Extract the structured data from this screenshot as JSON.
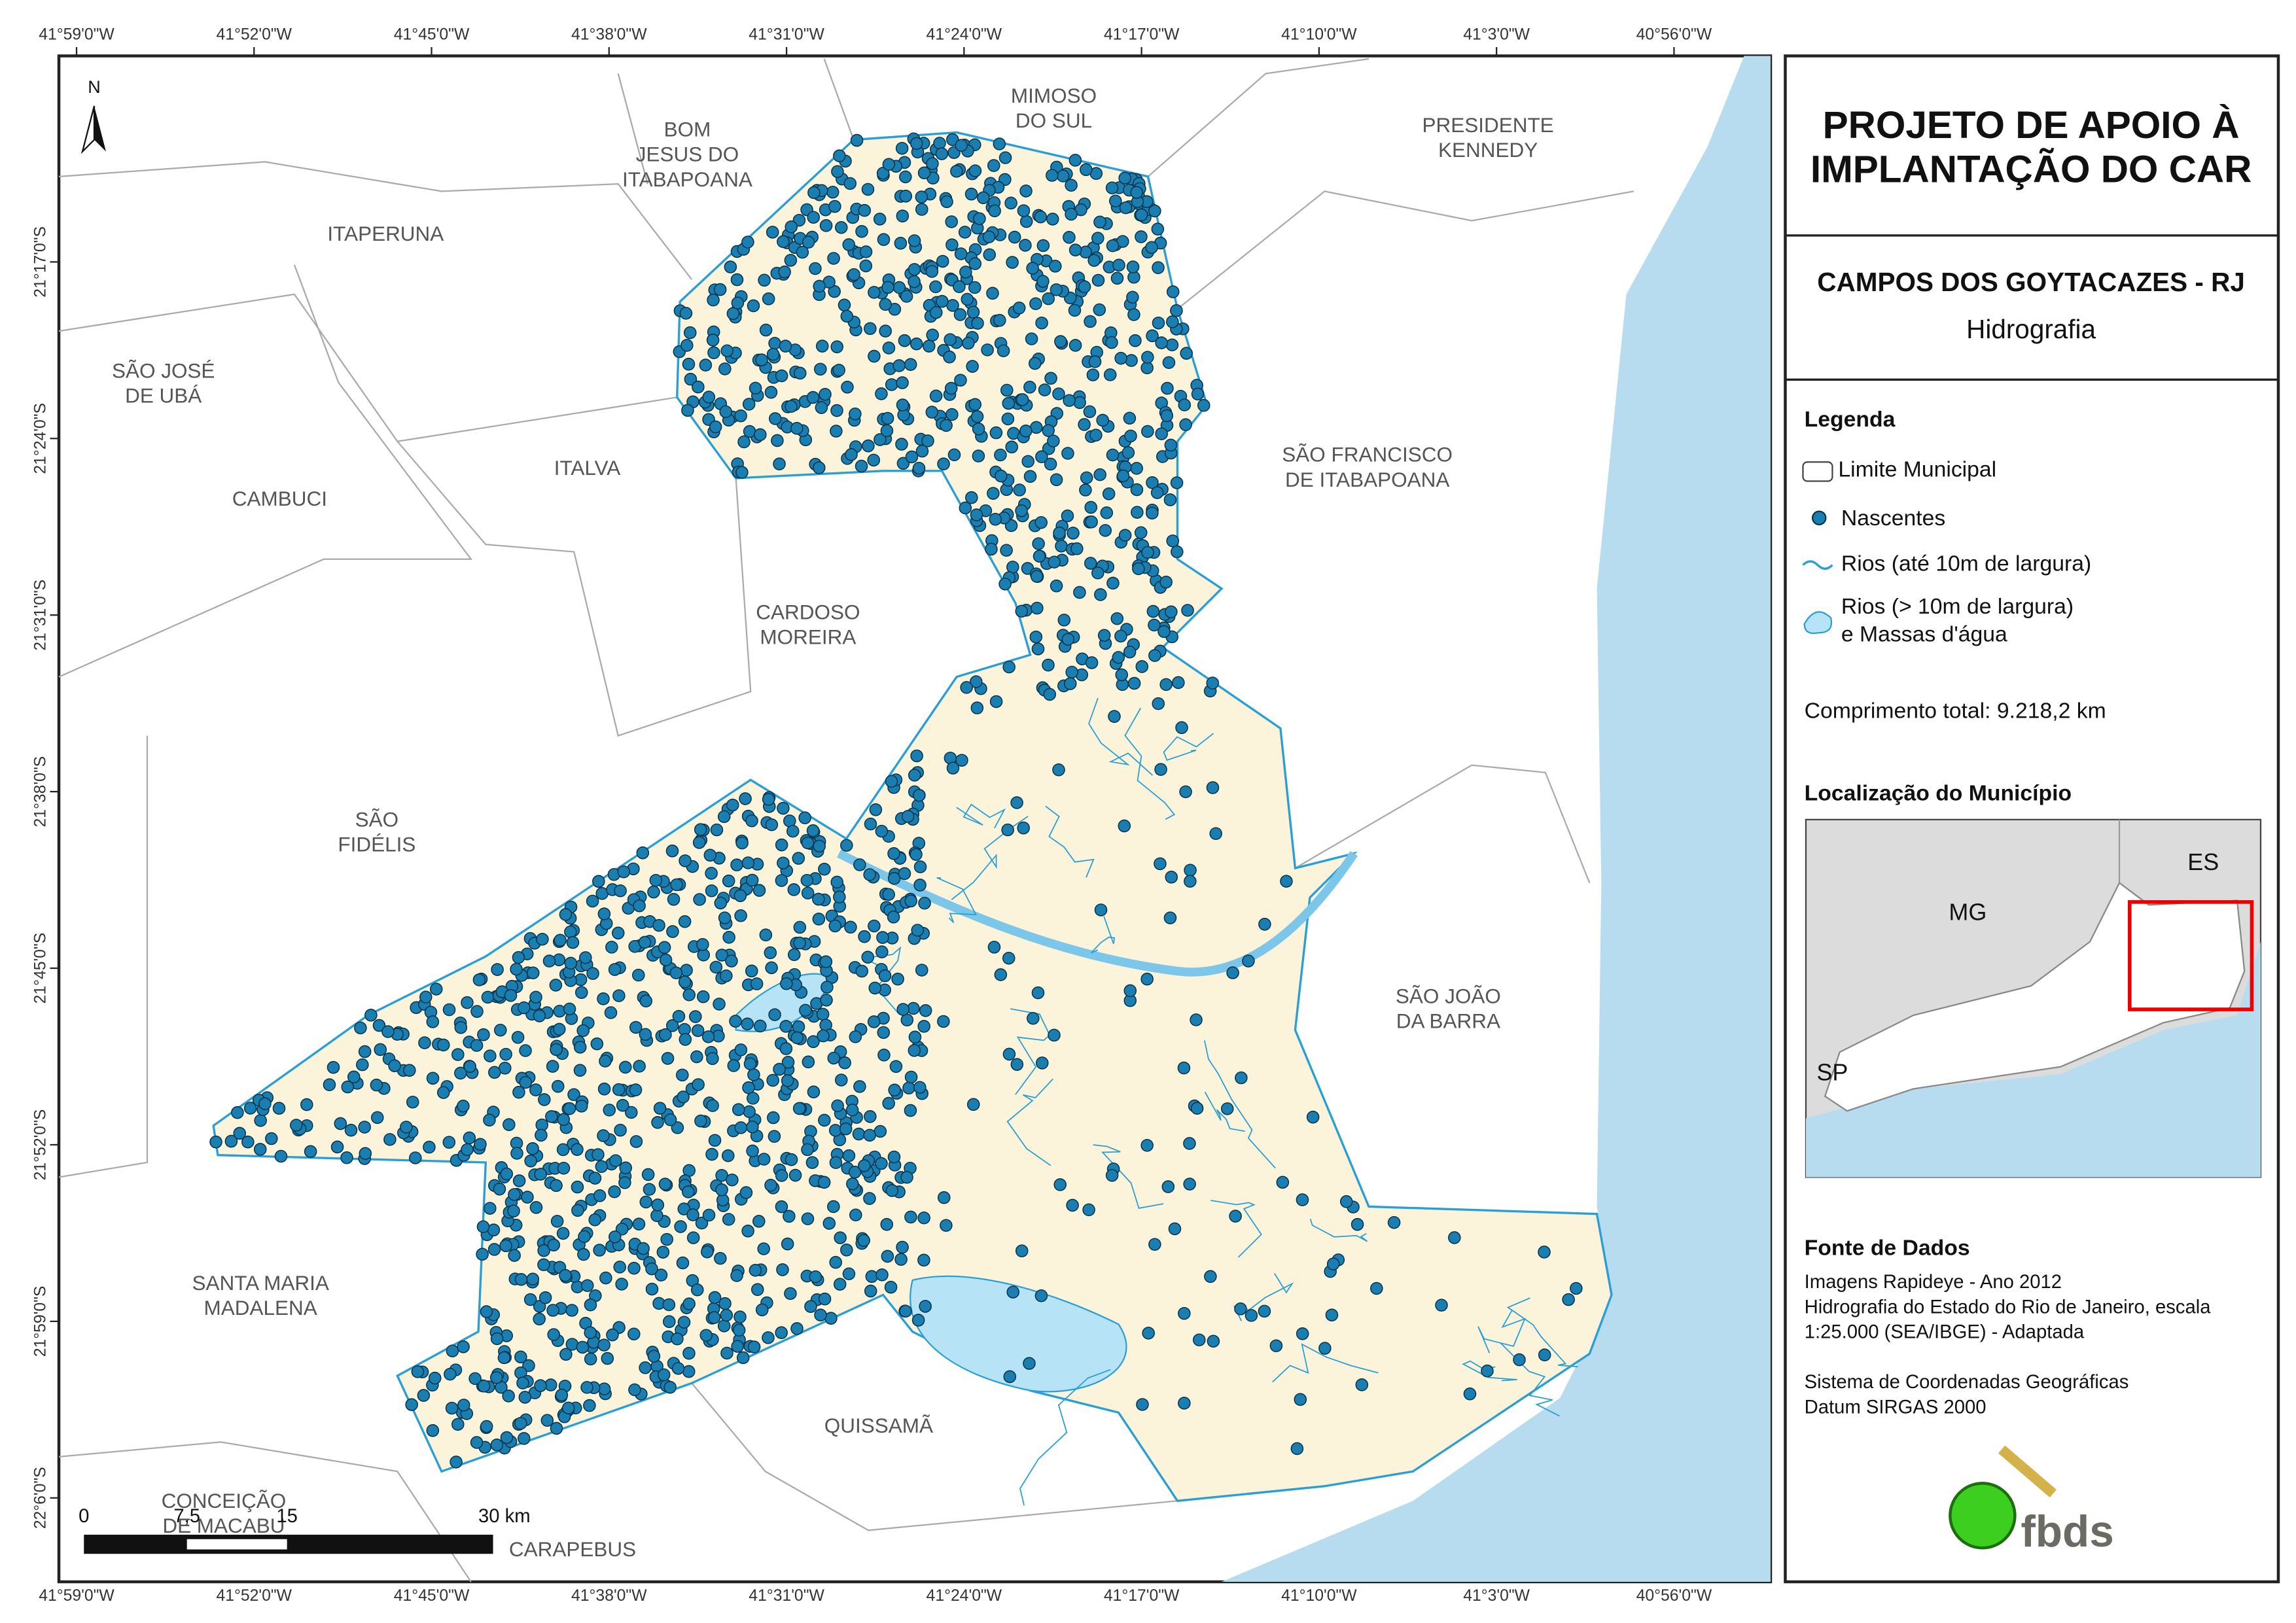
{
  "map": {
    "lon_labels": [
      "41°59'0\"W",
      "41°52'0\"W",
      "41°45'0\"W",
      "41°38'0\"W",
      "41°31'0\"W",
      "41°24'0\"W",
      "41°17'0\"W",
      "41°10'0\"W",
      "41°3'0\"W",
      "40°56'0\"W"
    ],
    "lat_labels": [
      "21°17'0\"S",
      "21°24'0\"S",
      "21°31'0\"S",
      "21°38'0\"S",
      "21°45'0\"S",
      "21°52'0\"S",
      "21°59'0\"S",
      "22°6'0\"S"
    ],
    "north": "N",
    "municipalities": [
      [
        "MIMOSO",
        "DO SUL"
      ],
      [
        "BOM",
        "JESUS DO",
        "ITABAPOANA"
      ],
      [
        "PRESIDENTE",
        "KENNEDY"
      ],
      [
        "ITAPERUNA"
      ],
      [
        "SÃO JOSÉ",
        "DE UBÁ"
      ],
      [
        "ITALVA"
      ],
      [
        "CAMBUCI"
      ],
      [
        "SÃO FRANCISCO",
        "DE ITABAPOANA"
      ],
      [
        "CARDOSO",
        "MOREIRA"
      ],
      [
        "SÃO",
        "FIDÉLIS"
      ],
      [
        "SÃO JOÃO",
        "DA BARRA"
      ],
      [
        "SANTA MARIA",
        "MADALENA"
      ],
      [
        "QUISSAMÃ"
      ],
      [
        "CONCEIÇÃO",
        "DE MACABU"
      ],
      [
        "CARAPEBUS"
      ]
    ],
    "scale_bar": [
      "0",
      "7,5",
      "15",
      "30 km"
    ]
  },
  "panel": {
    "title": [
      "PROJETO DE APOIO À",
      "IMPLANTAÇÃO DO CAR"
    ],
    "subtitle": "CAMPOS DOS GOYTACAZES - RJ",
    "theme": "Hidrografia",
    "legend_title": "Legenda",
    "legend_items": [
      [
        "Limite Municipal"
      ],
      [
        "Nascentes"
      ],
      [
        "Rios (até 10m de largura)"
      ],
      [
        "Rios (> 10m de largura)",
        "e Massas d'água"
      ]
    ],
    "total": "Comprimento total:  9.218,2 km",
    "location_title": "Localização do Município",
    "inset_labels": [
      "MG",
      "ES",
      "SP"
    ],
    "sources_title": "Fonte de Dados",
    "sources": [
      "Imagens Rapideye - Ano 2012",
      "Hidrografia do Estado do Rio de Janeiro, escala",
      "1:25.000 (SEA/IBGE) - Adaptada",
      "Sistema de Coordenadas Geográficas",
      "Datum SIRGAS 2000"
    ],
    "logo": "fbds"
  }
}
